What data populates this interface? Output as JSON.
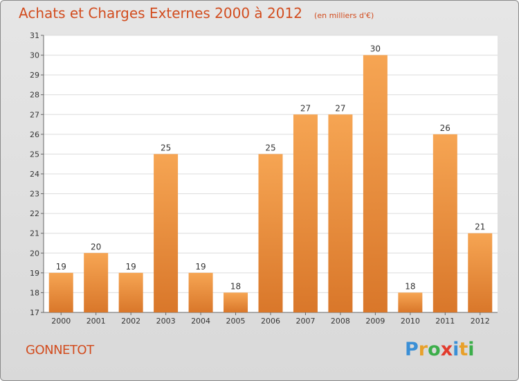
{
  "title": "Achats et Charges Externes 2000 à 2012",
  "subtitle": "(en milliers d'€)",
  "commune": "GONNETOT",
  "brand": {
    "letters": [
      {
        "ch": "P",
        "color": "#3a8fd6"
      },
      {
        "ch": "r",
        "color": "#e8a02a"
      },
      {
        "ch": "o",
        "color": "#3cae4a"
      },
      {
        "ch": "x",
        "color": "#e23b2d"
      },
      {
        "ch": "i",
        "color": "#3a8fd6"
      },
      {
        "ch": "t",
        "color": "#e8a02a"
      },
      {
        "ch": "i",
        "color": "#3cae4a"
      }
    ]
  },
  "colors": {
    "bar_top": "#f6a553",
    "bar_bottom": "#d9772a",
    "title": "#d24c1e"
  },
  "chart_data": {
    "type": "bar",
    "categories": [
      "2000",
      "2001",
      "2002",
      "2003",
      "2004",
      "2005",
      "2006",
      "2007",
      "2008",
      "2009",
      "2010",
      "2011",
      "2012"
    ],
    "values": [
      19,
      20,
      19,
      25,
      19,
      18,
      25,
      27,
      27,
      30,
      18,
      26,
      21
    ],
    "title": "Achats et Charges Externes 2000 à 2012",
    "xlabel": "",
    "ylabel": "",
    "ylim": [
      17,
      31
    ],
    "yticks": [
      17,
      18,
      19,
      20,
      21,
      22,
      23,
      24,
      25,
      26,
      27,
      28,
      29,
      30,
      31
    ],
    "grid": true,
    "data_labels": true
  }
}
